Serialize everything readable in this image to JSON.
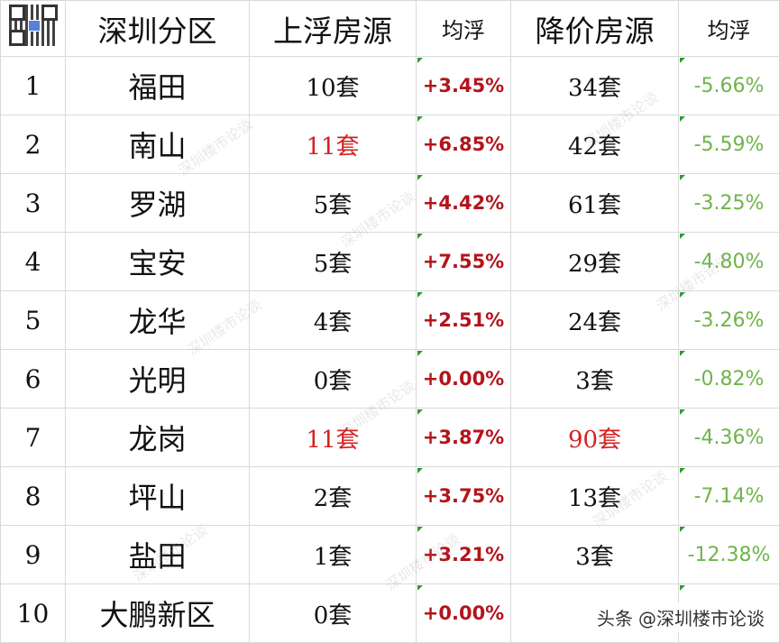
{
  "table": {
    "headers": {
      "district": "深圳分区",
      "rise_count": "上浮房源",
      "rise_avg": "均浮",
      "drop_count": "降价房源",
      "drop_avg": "均浮"
    },
    "rows": [
      {
        "no": "1",
        "district": "福田",
        "rise_count": "10套",
        "rise_avg": "+3.45%",
        "drop_count": "34套",
        "drop_avg": "-5.66%"
      },
      {
        "no": "2",
        "district": "南山",
        "rise_count": "11套",
        "rise_avg": "+6.85%",
        "drop_count": "42套",
        "drop_avg": "-5.59%"
      },
      {
        "no": "3",
        "district": "罗湖",
        "rise_count": "5套",
        "rise_avg": "+4.42%",
        "drop_count": "61套",
        "drop_avg": "-3.25%"
      },
      {
        "no": "4",
        "district": "宝安",
        "rise_count": "5套",
        "rise_avg": "+7.55%",
        "drop_count": "29套",
        "drop_avg": "-4.80%"
      },
      {
        "no": "5",
        "district": "龙华",
        "rise_count": "4套",
        "rise_avg": "+2.51%",
        "drop_count": "24套",
        "drop_avg": "-3.26%"
      },
      {
        "no": "6",
        "district": "光明",
        "rise_count": "0套",
        "rise_avg": "+0.00%",
        "drop_count": "3套",
        "drop_avg": "-0.82%"
      },
      {
        "no": "7",
        "district": "龙岗",
        "rise_count": "11套",
        "rise_avg": "+3.87%",
        "drop_count": "90套",
        "drop_avg": "-4.36%"
      },
      {
        "no": "8",
        "district": "坪山",
        "rise_count": "2套",
        "rise_avg": "+3.75%",
        "drop_count": "13套",
        "drop_avg": "-7.14%"
      },
      {
        "no": "9",
        "district": "盐田",
        "rise_count": "1套",
        "rise_avg": "+3.21%",
        "drop_count": "3套",
        "drop_avg": "-12.38%"
      },
      {
        "no": "10",
        "district": "大鹏新区",
        "rise_count": "0套",
        "rise_avg": "+0.00%",
        "drop_count": "",
        "drop_avg": ""
      }
    ]
  },
  "watermark_text": "深圳楼市论谈",
  "footer": {
    "source_label": "头条",
    "account": "@深圳楼市论谈"
  },
  "colors": {
    "highlight_red": "#d42020",
    "rise_red": "#b3141c",
    "drop_green": "#6fb44a"
  }
}
